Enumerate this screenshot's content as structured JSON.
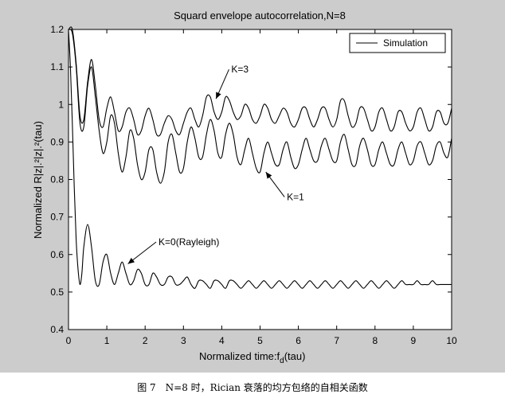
{
  "figure": {
    "caption": "图 7　N=8 时，Rician 衰落的均方包络的自相关函数"
  },
  "chart_data": {
    "type": "line",
    "title": "Squard envelope autocorrelation,N=8",
    "xlabel": "Normalized time:f",
    "xlabel_sub": "d",
    "xlabel_tail": "(tau)",
    "ylabel": "Normalized R|z|.²|z|.²(tau)",
    "xlim": [
      0,
      10
    ],
    "ylim": [
      0.4,
      1.2
    ],
    "xticks": [
      0,
      1,
      2,
      3,
      4,
      5,
      6,
      7,
      8,
      9,
      10
    ],
    "yticks": [
      0.4,
      0.5,
      0.6,
      0.7,
      0.8,
      0.9,
      1,
      1.1,
      1.2
    ],
    "grid": false,
    "legend": {
      "placement": "top-right",
      "entries": [
        "Simulation"
      ]
    },
    "line_color": "#000000",
    "series": [
      {
        "x": [
          0,
          0.1,
          0.2,
          0.3,
          0.4,
          0.5,
          0.6,
          0.7,
          0.8,
          0.9,
          1.0,
          1.1,
          1.2,
          1.3,
          1.4,
          1.5,
          1.6,
          1.7,
          1.8,
          1.9,
          2.0,
          2.1,
          2.2,
          2.3,
          2.4,
          2.5,
          2.6,
          2.7,
          2.8,
          2.9,
          3.0,
          3.1,
          3.2,
          3.3,
          3.4,
          3.5,
          3.6,
          3.7,
          3.8,
          3.9,
          4.0,
          4.1,
          4.2,
          4.3,
          4.4,
          4.5,
          4.6,
          4.7,
          4.8,
          4.9,
          5.0,
          5.1,
          5.2,
          5.3,
          5.4,
          5.5,
          5.6,
          5.7,
          5.8,
          5.9,
          6.0,
          6.1,
          6.2,
          6.3,
          6.4,
          6.5,
          6.6,
          6.7,
          6.8,
          6.9,
          7.0,
          7.1,
          7.2,
          7.3,
          7.4,
          7.5,
          7.6,
          7.7,
          7.8,
          7.9,
          8.0,
          8.1,
          8.2,
          8.3,
          8.4,
          8.5,
          8.6,
          8.7,
          8.8,
          8.9,
          9.0,
          9.1,
          9.2,
          9.3,
          9.4,
          9.5,
          9.6,
          9.7,
          9.8,
          9.9,
          10.0
        ],
        "y": [
          1.2,
          1.2,
          1.11,
          0.97,
          0.96,
          1.06,
          1.12,
          1.05,
          0.96,
          0.94,
          0.99,
          1.02,
          0.98,
          0.93,
          0.94,
          0.98,
          0.99,
          0.96,
          0.92,
          0.93,
          0.97,
          0.99,
          0.96,
          0.92,
          0.92,
          0.95,
          0.97,
          0.96,
          0.93,
          0.92,
          0.95,
          0.98,
          0.99,
          0.96,
          0.94,
          0.97,
          1.02,
          1.02,
          0.98,
          0.96,
          0.98,
          1.02,
          1.01,
          0.98,
          0.96,
          0.97,
          1.0,
          0.99,
          0.96,
          0.95,
          0.97,
          1.0,
          0.99,
          0.96,
          0.95,
          0.97,
          0.99,
          0.98,
          0.95,
          0.94,
          0.96,
          0.99,
          0.99,
          0.96,
          0.94,
          0.96,
          0.99,
          0.99,
          0.96,
          0.94,
          0.96,
          1.01,
          1.01,
          0.97,
          0.94,
          0.95,
          0.99,
          0.99,
          0.96,
          0.93,
          0.94,
          0.98,
          0.99,
          0.96,
          0.93,
          0.94,
          0.98,
          0.98,
          0.95,
          0.93,
          0.94,
          0.98,
          0.99,
          0.96,
          0.93,
          0.94,
          0.98,
          0.98,
          0.95,
          0.95,
          0.99
        ]
      },
      {
        "x": [
          0,
          0.1,
          0.2,
          0.3,
          0.4,
          0.5,
          0.6,
          0.7,
          0.8,
          0.9,
          1.0,
          1.1,
          1.2,
          1.3,
          1.4,
          1.5,
          1.6,
          1.7,
          1.8,
          1.9,
          2.0,
          2.1,
          2.2,
          2.3,
          2.4,
          2.5,
          2.6,
          2.7,
          2.8,
          2.9,
          3.0,
          3.1,
          3.2,
          3.3,
          3.4,
          3.5,
          3.6,
          3.7,
          3.8,
          3.9,
          4.0,
          4.1,
          4.2,
          4.3,
          4.4,
          4.5,
          4.6,
          4.7,
          4.8,
          4.9,
          5.0,
          5.1,
          5.2,
          5.3,
          5.4,
          5.5,
          5.6,
          5.7,
          5.8,
          5.9,
          6.0,
          6.1,
          6.2,
          6.3,
          6.4,
          6.5,
          6.6,
          6.7,
          6.8,
          6.9,
          7.0,
          7.1,
          7.2,
          7.3,
          7.4,
          7.5,
          7.6,
          7.7,
          7.8,
          7.9,
          8.0,
          8.1,
          8.2,
          8.3,
          8.4,
          8.5,
          8.6,
          8.7,
          8.8,
          8.9,
          9.0,
          9.1,
          9.2,
          9.3,
          9.4,
          9.5,
          9.6,
          9.7,
          9.8,
          9.9,
          10.0
        ],
        "y": [
          1.2,
          1.19,
          1.1,
          0.95,
          0.94,
          1.05,
          1.1,
          1.02,
          0.93,
          0.87,
          0.9,
          0.97,
          0.95,
          0.87,
          0.82,
          0.86,
          0.93,
          0.91,
          0.84,
          0.8,
          0.82,
          0.88,
          0.88,
          0.82,
          0.79,
          0.82,
          0.9,
          0.92,
          0.87,
          0.82,
          0.83,
          0.9,
          0.94,
          0.91,
          0.86,
          0.86,
          0.92,
          0.96,
          0.93,
          0.87,
          0.86,
          0.92,
          0.95,
          0.92,
          0.86,
          0.84,
          0.88,
          0.91,
          0.87,
          0.83,
          0.82,
          0.87,
          0.9,
          0.87,
          0.84,
          0.84,
          0.88,
          0.9,
          0.86,
          0.83,
          0.84,
          0.88,
          0.91,
          0.88,
          0.85,
          0.85,
          0.89,
          0.91,
          0.88,
          0.85,
          0.85,
          0.9,
          0.92,
          0.88,
          0.84,
          0.84,
          0.89,
          0.91,
          0.88,
          0.84,
          0.84,
          0.88,
          0.9,
          0.87,
          0.84,
          0.84,
          0.88,
          0.9,
          0.87,
          0.84,
          0.85,
          0.89,
          0.9,
          0.87,
          0.84,
          0.85,
          0.89,
          0.9,
          0.87,
          0.86,
          0.91
        ]
      },
      {
        "x": [
          0,
          0.05,
          0.1,
          0.15,
          0.2,
          0.25,
          0.3,
          0.35,
          0.4,
          0.5,
          0.6,
          0.7,
          0.8,
          0.9,
          1.0,
          1.1,
          1.2,
          1.3,
          1.4,
          1.5,
          1.6,
          1.7,
          1.8,
          1.9,
          2.0,
          2.1,
          2.2,
          2.3,
          2.4,
          2.5,
          2.6,
          2.7,
          2.8,
          2.9,
          3.0,
          3.1,
          3.2,
          3.3,
          3.4,
          3.5,
          3.6,
          3.7,
          3.8,
          3.9,
          4.0,
          4.1,
          4.2,
          4.3,
          4.4,
          4.5,
          4.6,
          4.7,
          4.8,
          4.9,
          5.0,
          5.1,
          5.2,
          5.3,
          5.4,
          5.5,
          5.6,
          5.7,
          5.8,
          5.9,
          6.0,
          6.1,
          6.2,
          6.3,
          6.4,
          6.5,
          6.6,
          6.7,
          6.8,
          6.9,
          7.0,
          7.1,
          7.2,
          7.3,
          7.4,
          7.5,
          7.6,
          7.7,
          7.8,
          7.9,
          8.0,
          8.1,
          8.2,
          8.3,
          8.4,
          8.5,
          8.6,
          8.7,
          8.8,
          8.9,
          9.0,
          9.1,
          9.2,
          9.3,
          9.4,
          9.5,
          9.6,
          9.7,
          9.8,
          9.9,
          10.0
        ],
        "y": [
          1.2,
          1.1,
          0.95,
          0.78,
          0.64,
          0.56,
          0.52,
          0.55,
          0.62,
          0.68,
          0.62,
          0.53,
          0.52,
          0.58,
          0.6,
          0.55,
          0.52,
          0.55,
          0.58,
          0.55,
          0.52,
          0.53,
          0.56,
          0.55,
          0.52,
          0.52,
          0.55,
          0.54,
          0.52,
          0.52,
          0.54,
          0.54,
          0.52,
          0.52,
          0.53,
          0.54,
          0.52,
          0.51,
          0.53,
          0.53,
          0.52,
          0.51,
          0.53,
          0.53,
          0.52,
          0.51,
          0.53,
          0.53,
          0.52,
          0.51,
          0.52,
          0.53,
          0.52,
          0.51,
          0.52,
          0.53,
          0.52,
          0.51,
          0.52,
          0.53,
          0.52,
          0.51,
          0.52,
          0.53,
          0.52,
          0.51,
          0.52,
          0.53,
          0.52,
          0.51,
          0.52,
          0.53,
          0.52,
          0.51,
          0.52,
          0.53,
          0.52,
          0.51,
          0.52,
          0.53,
          0.52,
          0.51,
          0.52,
          0.53,
          0.52,
          0.51,
          0.52,
          0.53,
          0.52,
          0.51,
          0.52,
          0.53,
          0.52,
          0.52,
          0.52,
          0.53,
          0.52,
          0.52,
          0.52,
          0.53,
          0.52,
          0.52,
          0.52,
          0.52,
          0.52
        ]
      }
    ],
    "annotations": [
      {
        "text": "K=3",
        "x": 4.25,
        "y": 1.085,
        "arrow_to": [
          3.85,
          1.015
        ]
      },
      {
        "text": "K=1",
        "x": 5.7,
        "y": 0.745,
        "arrow_to": [
          5.15,
          0.82
        ]
      },
      {
        "text": "K=0(Rayleigh)",
        "x": 2.35,
        "y": 0.625,
        "arrow_to": [
          1.55,
          0.575
        ]
      }
    ]
  }
}
